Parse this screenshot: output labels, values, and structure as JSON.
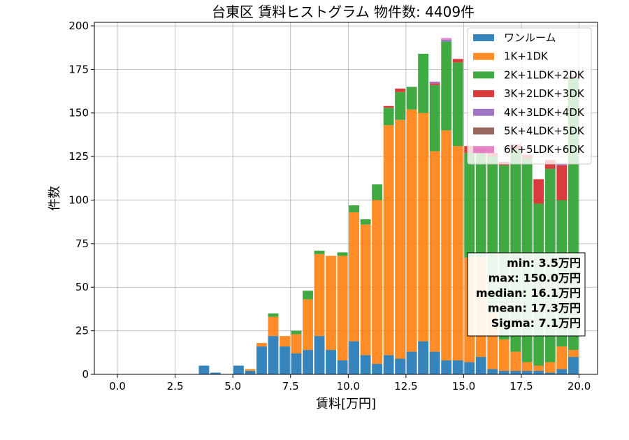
{
  "chart_data": {
    "type": "bar",
    "stacked": true,
    "title": "台東区 賃料ヒストグラム  物件数: 4409件",
    "xlabel": "賃料[万円]",
    "ylabel": "件数",
    "xlim": [
      -1.0,
      20.8
    ],
    "ylim": [
      0,
      202
    ],
    "bin_width": 0.5,
    "grid": true,
    "legend_position": "top-right",
    "x_ticks": [
      0.0,
      2.5,
      5.0,
      7.5,
      10.0,
      12.5,
      15.0,
      17.5,
      20.0
    ],
    "x_tick_labels": [
      "0.0",
      "2.5",
      "5.0",
      "7.5",
      "10.0",
      "12.5",
      "15.0",
      "17.5",
      "20.0"
    ],
    "y_ticks": [
      0,
      25,
      50,
      75,
      100,
      125,
      150,
      175,
      200
    ],
    "y_tick_labels": [
      "0",
      "25",
      "50",
      "75",
      "100",
      "125",
      "150",
      "175",
      "200"
    ],
    "bins_start": [
      3.5,
      4.0,
      4.5,
      5.0,
      5.5,
      6.0,
      6.5,
      7.0,
      7.5,
      8.0,
      8.5,
      9.0,
      9.5,
      10.0,
      10.5,
      11.0,
      11.5,
      12.0,
      12.5,
      13.0,
      13.5,
      14.0,
      14.5,
      15.0,
      15.5,
      16.0,
      16.5,
      17.0,
      17.5,
      18.0,
      18.5,
      19.0,
      19.5
    ],
    "series": [
      {
        "name": "ワンルーム",
        "color": "#1f77b4",
        "values": [
          5,
          1,
          0,
          5,
          2,
          16,
          22,
          16,
          12,
          14,
          22,
          14,
          8,
          19,
          11,
          6,
          11,
          9,
          13,
          19,
          13,
          8,
          8,
          7,
          10,
          3,
          2,
          2,
          2,
          2,
          1,
          3,
          10
        ]
      },
      {
        "name": "1K+1DK",
        "color": "#ff7f0e",
        "values": [
          0,
          0,
          0,
          0,
          1,
          2,
          11,
          6,
          11,
          29,
          47,
          54,
          60,
          74,
          75,
          94,
          132,
          137,
          139,
          131,
          115,
          132,
          123,
          60,
          57,
          32,
          18,
          11,
          5,
          3,
          6,
          13,
          4
        ]
      },
      {
        "name": "2K+1LDK+2DK",
        "color": "#2ca02c",
        "values": [
          0,
          0,
          0,
          0,
          0,
          0,
          2,
          0,
          2,
          5,
          2,
          0,
          2,
          4,
          3,
          9,
          10,
          16,
          13,
          34,
          38,
          51,
          48,
          60,
          60,
          90,
          100,
          116,
          117,
          93,
          111,
          84,
          156
        ]
      },
      {
        "name": "3K+2LDK+3DK",
        "color": "#d62728",
        "values": [
          0,
          0,
          0,
          0,
          0,
          0,
          0,
          0,
          0,
          0,
          0,
          0,
          0,
          0,
          0,
          0,
          1,
          2,
          0,
          0,
          1,
          0,
          2,
          4,
          3,
          2,
          2,
          3,
          2,
          14,
          5,
          20,
          1
        ]
      },
      {
        "name": "4K+3LDK+4DK",
        "color": "#9467bd",
        "values": [
          0,
          0,
          0,
          0,
          0,
          0,
          0,
          0,
          0,
          0,
          0,
          0,
          0,
          0,
          0,
          0,
          0,
          0,
          0,
          0,
          1,
          1,
          0,
          0,
          0,
          0,
          0,
          0,
          0,
          0,
          0,
          1,
          0
        ]
      },
      {
        "name": "5K+4LDK+5DK",
        "color": "#8c564b",
        "values": [
          0,
          0,
          0,
          0,
          0,
          0,
          0,
          0,
          0,
          0,
          0,
          0,
          0,
          0,
          0,
          0,
          0,
          0,
          0,
          0,
          0,
          0,
          0,
          0,
          0,
          0,
          0,
          0,
          0,
          0,
          0,
          0,
          0
        ]
      },
      {
        "name": "6K+5LDK+6DK",
        "color": "#e377c2",
        "values": [
          0,
          0,
          0,
          0,
          0,
          0,
          0,
          0,
          0,
          0,
          0,
          0,
          0,
          0,
          0,
          0,
          0,
          0,
          0,
          0,
          0,
          1,
          0,
          0,
          0,
          0,
          0,
          0,
          0,
          0,
          0,
          0,
          0
        ]
      }
    ],
    "stats": [
      "min: 3.5万円",
      "max: 150.0万円",
      "median: 16.1万円",
      "mean: 17.3万円",
      "Sigma: 7.1万円"
    ]
  }
}
